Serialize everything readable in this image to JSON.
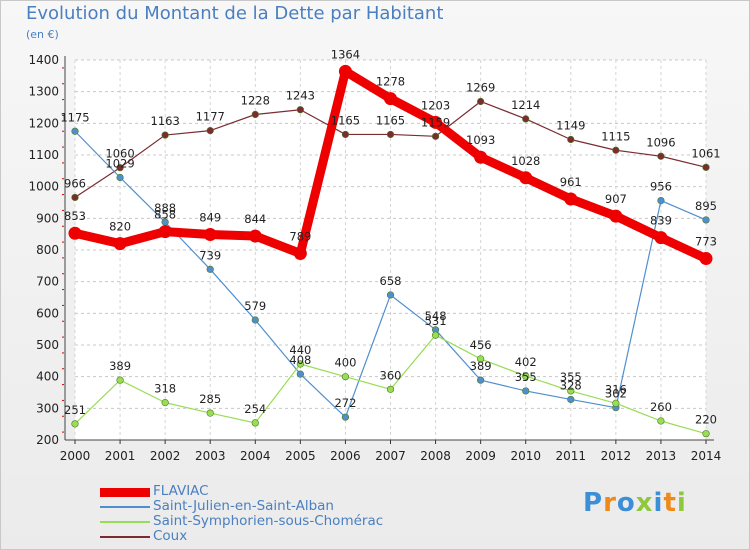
{
  "title": "Evolution du Montant de la Dette par Habitant",
  "unit": "(en €)",
  "logo_text": "Proxiti",
  "chart_data": {
    "type": "line",
    "title": "Evolution du Montant de la Dette par Habitant",
    "ylabel": "(en €)",
    "ylim": [
      200,
      1400
    ],
    "yticks": [
      "200",
      "300",
      "400",
      "500",
      "600",
      "700",
      "800",
      "900",
      "1000",
      "1100",
      "1200",
      "1300",
      "1400"
    ],
    "x": [
      "2000",
      "2001",
      "2002",
      "2003",
      "2004",
      "2005",
      "2006",
      "2007",
      "2008",
      "2009",
      "2010",
      "2011",
      "2012",
      "2013",
      "2014"
    ],
    "grid": "horizontal dashed",
    "legend": "bottom-left",
    "series": [
      {
        "name": "FLAVIAC",
        "color": "#ee0000",
        "values": [
          853,
          820,
          858,
          849,
          844,
          789,
          1364,
          1278,
          1203,
          1093,
          1028,
          961,
          907,
          839,
          773
        ],
        "labels": [
          "853",
          "820",
          "858",
          "849",
          "844",
          "789",
          "1364",
          "1278",
          "1203",
          "1093",
          "1028",
          "961",
          "907",
          "839",
          "773"
        ]
      },
      {
        "name": "Saint-Julien-en-Saint-Alban",
        "color": "#4f8fd0",
        "values": [
          1175,
          1029,
          888,
          739,
          579,
          408,
          272,
          658,
          548,
          389,
          355,
          328,
          302,
          956,
          895
        ],
        "labels": [
          "1175",
          "1029",
          "888",
          "739",
          "579",
          "408",
          "272",
          "658",
          "548",
          "389",
          "355",
          "328",
          "302",
          "956",
          "895"
        ]
      },
      {
        "name": "Saint-Symphorien-sous-Chomérac",
        "color": "#99dd55",
        "values": [
          251,
          389,
          318,
          285,
          254,
          440,
          400,
          360,
          531,
          456,
          402,
          355,
          316,
          260,
          220
        ],
        "labels": [
          "251",
          "389",
          "318",
          "285",
          "254",
          "440",
          "400",
          "360",
          "531",
          "456",
          "402",
          "355",
          "316",
          "260",
          "220"
        ]
      },
      {
        "name": "Coux",
        "color": "#7a2c30",
        "values": [
          966,
          1060,
          1163,
          1177,
          1228,
          1243,
          1165,
          1165,
          1159,
          1269,
          1214,
          1149,
          1115,
          1096,
          1061
        ],
        "labels": [
          "966",
          "1060",
          "1163",
          "1177",
          "1228",
          "1243",
          "1165",
          "1165",
          "1159",
          "1269",
          "1214",
          "1149",
          "1115",
          "1096",
          "1061"
        ]
      }
    ]
  }
}
